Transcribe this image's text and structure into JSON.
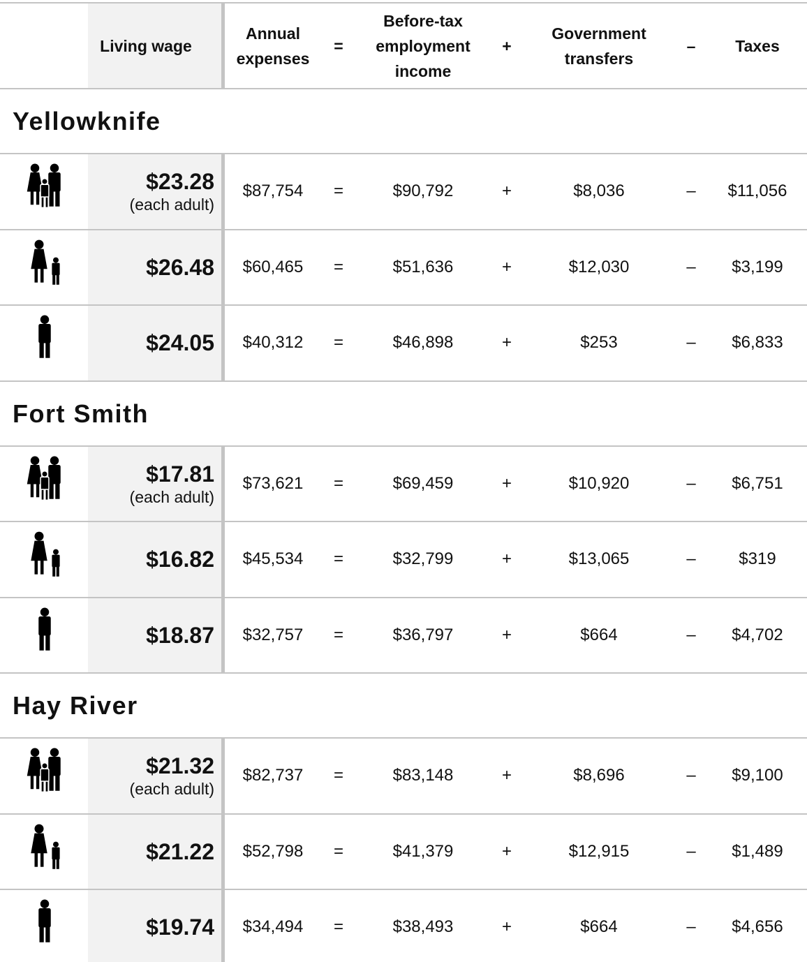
{
  "header": {
    "living_wage": "Living wage",
    "annual_expenses": "Annual expenses",
    "income": "Before-tax employment income",
    "transfers": "Government transfers",
    "taxes": "Taxes"
  },
  "operators": [
    "=",
    "+",
    "–"
  ],
  "sections": [
    {
      "name": "Yellowknife",
      "rows": [
        {
          "wage": "$23.28",
          "note": "(each adult)",
          "expenses": "$87,754",
          "income": "$90,792",
          "transfers": "$8,036",
          "taxes": "$11,056"
        },
        {
          "wage": "$26.48",
          "expenses": "$60,465",
          "income": "$51,636",
          "transfers": "$12,030",
          "taxes": "$3,199"
        },
        {
          "wage": "$24.05",
          "expenses": "$40,312",
          "income": "$46,898",
          "transfers": "$253",
          "taxes": "$6,833"
        }
      ]
    },
    {
      "name": "Fort Smith",
      "rows": [
        {
          "wage": "$17.81",
          "note": "(each adult)",
          "expenses": "$73,621",
          "income": "$69,459",
          "transfers": "$10,920",
          "taxes": "$6,751"
        },
        {
          "wage": "$16.82",
          "expenses": "$45,534",
          "income": "$32,799",
          "transfers": "$13,065",
          "taxes": "$319"
        },
        {
          "wage": "$18.87",
          "expenses": "$32,757",
          "income": "$36,797",
          "transfers": "$664",
          "taxes": "$4,702"
        }
      ]
    },
    {
      "name": "Hay River",
      "rows": [
        {
          "wage": "$21.32",
          "note": "(each adult)",
          "expenses": "$82,737",
          "income": "$83,148",
          "transfers": "$8,696",
          "taxes": "$9,100"
        },
        {
          "wage": "$21.22",
          "expenses": "$52,798",
          "income": "$41,379",
          "transfers": "$12,915",
          "taxes": "$1,489"
        },
        {
          "wage": "$19.74",
          "expenses": "$34,494",
          "income": "$38,493",
          "transfers": "$664",
          "taxes": "$4,656"
        }
      ]
    }
  ]
}
